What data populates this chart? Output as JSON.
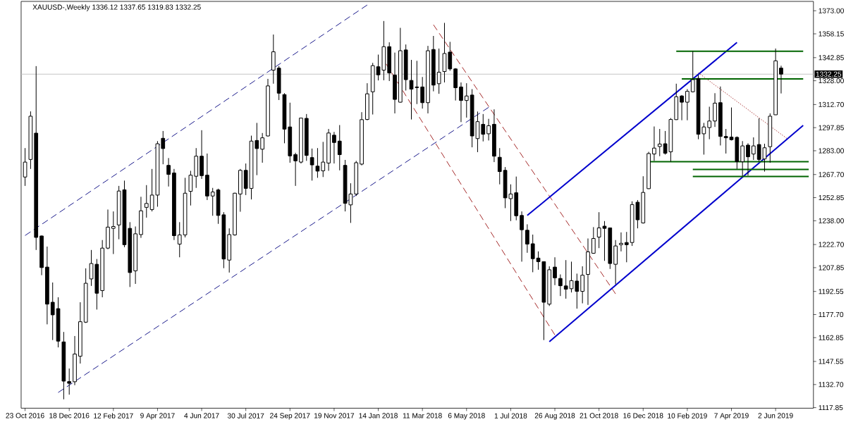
{
  "chart_data": {
    "type": "candlestick",
    "title": "XAUUSD-,Weekly  1336.12 1337.65 1319.83 1332.25",
    "x": [
      "2016-10-23",
      "2016-10-30",
      "2016-11-06",
      "2016-11-13",
      "2016-11-20",
      "2016-11-27",
      "2016-12-04",
      "2016-12-11",
      "2016-12-18",
      "2016-12-25",
      "2017-01-01",
      "2017-01-08",
      "2017-01-15",
      "2017-01-22",
      "2017-01-29",
      "2017-02-05",
      "2017-02-12",
      "2017-02-19",
      "2017-02-26",
      "2017-03-05",
      "2017-03-12",
      "2017-03-19",
      "2017-03-26",
      "2017-04-02",
      "2017-04-09",
      "2017-04-16",
      "2017-04-23",
      "2017-04-30",
      "2017-05-07",
      "2017-05-14",
      "2017-05-21",
      "2017-05-28",
      "2017-06-04",
      "2017-06-11",
      "2017-06-18",
      "2017-06-25",
      "2017-07-02",
      "2017-07-09",
      "2017-07-16",
      "2017-07-23",
      "2017-07-30",
      "2017-08-06",
      "2017-08-13",
      "2017-08-20",
      "2017-08-27",
      "2017-09-03",
      "2017-09-10",
      "2017-09-17",
      "2017-09-24",
      "2017-10-01",
      "2017-10-08",
      "2017-10-15",
      "2017-10-22",
      "2017-10-29",
      "2017-11-05",
      "2017-11-12",
      "2017-11-19",
      "2017-11-26",
      "2017-12-03",
      "2017-12-10",
      "2017-12-17",
      "2017-12-24",
      "2017-12-31",
      "2018-01-07",
      "2018-01-14",
      "2018-01-21",
      "2018-01-28",
      "2018-02-04",
      "2018-02-11",
      "2018-02-18",
      "2018-02-25",
      "2018-03-04",
      "2018-03-11",
      "2018-03-18",
      "2018-03-25",
      "2018-04-01",
      "2018-04-08",
      "2018-04-15",
      "2018-04-22",
      "2018-04-29",
      "2018-05-06",
      "2018-05-13",
      "2018-05-20",
      "2018-05-27",
      "2018-06-03",
      "2018-06-10",
      "2018-06-17",
      "2018-06-24",
      "2018-07-01",
      "2018-07-08",
      "2018-07-15",
      "2018-07-22",
      "2018-07-29",
      "2018-08-05",
      "2018-08-12",
      "2018-08-19",
      "2018-08-26",
      "2018-09-02",
      "2018-09-09",
      "2018-09-16",
      "2018-09-23",
      "2018-09-30",
      "2018-10-07",
      "2018-10-14",
      "2018-10-21",
      "2018-10-28",
      "2018-11-04",
      "2018-11-11",
      "2018-11-18",
      "2018-11-25",
      "2018-12-02",
      "2018-12-09",
      "2018-12-16",
      "2018-12-23",
      "2018-12-30",
      "2019-01-06",
      "2019-01-13",
      "2019-01-20",
      "2019-01-27",
      "2019-02-03",
      "2019-02-10",
      "2019-02-17",
      "2019-02-24",
      "2019-03-03",
      "2019-03-10",
      "2019-03-17",
      "2019-03-24",
      "2019-03-31",
      "2019-04-07",
      "2019-04-14",
      "2019-04-21",
      "2019-04-28",
      "2019-05-05",
      "2019-05-12",
      "2019-05-19",
      "2019-05-26",
      "2019-06-02",
      "2019-06-09"
    ],
    "ohlc": [
      [
        1266.1,
        1284.7,
        1260.4,
        1275.7
      ],
      [
        1277.4,
        1308.3,
        1271.3,
        1305.2
      ],
      [
        1294.3,
        1337.4,
        1219.2,
        1227.3
      ],
      [
        1228.2,
        1228.5,
        1203.0,
        1207.9
      ],
      [
        1208.2,
        1221.4,
        1171.4,
        1184.4
      ],
      [
        1185.6,
        1198.3,
        1161.3,
        1177.5
      ],
      [
        1181.5,
        1188.8,
        1156.6,
        1160.6
      ],
      [
        1160.1,
        1166.5,
        1123.2,
        1134.9
      ],
      [
        1134.6,
        1143.0,
        1126.2,
        1133.5
      ],
      [
        1134.5,
        1163.9,
        1132.3,
        1152.3
      ],
      [
        1150.9,
        1185.6,
        1146.2,
        1173.1
      ],
      [
        1172.8,
        1207.4,
        1172.3,
        1197.8
      ],
      [
        1200.6,
        1219.2,
        1196.1,
        1210.5
      ],
      [
        1210.0,
        1213.4,
        1180.9,
        1191.4
      ],
      [
        1193.1,
        1225.6,
        1188.8,
        1220.4
      ],
      [
        1220.4,
        1245.2,
        1219.7,
        1233.9
      ],
      [
        1233.1,
        1244.0,
        1216.6,
        1234.3
      ],
      [
        1235.3,
        1260.4,
        1226.1,
        1257.1
      ],
      [
        1257.9,
        1263.8,
        1221.0,
        1222.6
      ],
      [
        1233.1,
        1237.1,
        1195.4,
        1204.7
      ],
      [
        1205.8,
        1234.3,
        1197.4,
        1229.6
      ],
      [
        1229.1,
        1253.4,
        1227.0,
        1244.4
      ],
      [
        1246.6,
        1260.9,
        1240.0,
        1249.1
      ],
      [
        1245.2,
        1271.3,
        1244.0,
        1254.5
      ],
      [
        1254.5,
        1289.2,
        1247.0,
        1287.5
      ],
      [
        1291.0,
        1295.7,
        1274.3,
        1284.4
      ],
      [
        1273.6,
        1278.3,
        1260.0,
        1267.8
      ],
      [
        1268.7,
        1271.3,
        1225.6,
        1228.4
      ],
      [
        1223.0,
        1237.1,
        1214.5,
        1228.9
      ],
      [
        1228.9,
        1265.6,
        1227.3,
        1255.7
      ],
      [
        1256.9,
        1270.1,
        1247.8,
        1267.3
      ],
      [
        1266.6,
        1284.7,
        1259.1,
        1279.5
      ],
      [
        1279.5,
        1296.2,
        1264.9,
        1267.0
      ],
      [
        1267.3,
        1281.2,
        1251.3,
        1253.9
      ],
      [
        1253.9,
        1259.1,
        1241.2,
        1256.5
      ],
      [
        1257.8,
        1258.6,
        1236.0,
        1241.4
      ],
      [
        1241.8,
        1243.5,
        1207.5,
        1213.4
      ],
      [
        1212.7,
        1233.1,
        1204.7,
        1229.1
      ],
      [
        1228.9,
        1256.0,
        1228.4,
        1255.7
      ],
      [
        1255.2,
        1271.3,
        1243.8,
        1270.4
      ],
      [
        1270.4,
        1274.8,
        1254.5,
        1258.8
      ],
      [
        1258.8,
        1292.7,
        1251.7,
        1289.2
      ],
      [
        1289.6,
        1300.9,
        1267.3,
        1284.4
      ],
      [
        1284.0,
        1294.4,
        1275.3,
        1291.3
      ],
      [
        1292.5,
        1329.2,
        1292.2,
        1324.7
      ],
      [
        1334.8,
        1357.7,
        1326.1,
        1346.6
      ],
      [
        1336.1,
        1337.4,
        1315.6,
        1320.0
      ],
      [
        1319.1,
        1320.0,
        1287.8,
        1296.9
      ],
      [
        1298.3,
        1313.9,
        1275.3,
        1279.7
      ],
      [
        1280.5,
        1281.7,
        1260.4,
        1276.5
      ],
      [
        1275.7,
        1304.2,
        1274.8,
        1304.0
      ],
      [
        1303.8,
        1306.6,
        1276.5,
        1280.0
      ],
      [
        1278.6,
        1284.4,
        1263.8,
        1273.9
      ],
      [
        1273.1,
        1284.7,
        1265.6,
        1269.9
      ],
      [
        1270.1,
        1288.7,
        1266.1,
        1275.7
      ],
      [
        1275.1,
        1297.0,
        1270.1,
        1294.4
      ],
      [
        1293.0,
        1295.1,
        1274.8,
        1288.3
      ],
      [
        1289.2,
        1299.5,
        1270.4,
        1280.5
      ],
      [
        1273.6,
        1277.1,
        1244.0,
        1249.2
      ],
      [
        1248.2,
        1262.1,
        1236.6,
        1255.2
      ],
      [
        1255.2,
        1276.5,
        1253.9,
        1275.3
      ],
      [
        1274.4,
        1307.8,
        1273.6,
        1303.0
      ],
      [
        1303.1,
        1326.4,
        1302.6,
        1319.6
      ],
      [
        1320.9,
        1339.5,
        1306.3,
        1337.7
      ],
      [
        1337.0,
        1344.8,
        1328.2,
        1331.8
      ],
      [
        1334.8,
        1366.4,
        1328.3,
        1349.9
      ],
      [
        1349.9,
        1352.7,
        1327.8,
        1333.0
      ],
      [
        1331.6,
        1346.1,
        1307.0,
        1316.0
      ],
      [
        1314.2,
        1362.0,
        1314.0,
        1347.3
      ],
      [
        1347.8,
        1351.3,
        1321.7,
        1328.7
      ],
      [
        1328.2,
        1341.4,
        1303.1,
        1322.6
      ],
      [
        1324.0,
        1340.8,
        1313.0,
        1323.6
      ],
      [
        1324.0,
        1330.4,
        1310.1,
        1313.9
      ],
      [
        1313.9,
        1350.4,
        1307.0,
        1347.3
      ],
      [
        1348.1,
        1356.8,
        1321.2,
        1325.2
      ],
      [
        1326.1,
        1348.7,
        1319.6,
        1333.5
      ],
      [
        1333.9,
        1365.2,
        1326.9,
        1345.5
      ],
      [
        1346.4,
        1353.0,
        1334.4,
        1335.6
      ],
      [
        1335.6,
        1336.1,
        1315.3,
        1323.5
      ],
      [
        1324.0,
        1326.9,
        1301.4,
        1315.3
      ],
      [
        1315.3,
        1326.4,
        1304.3,
        1318.2
      ],
      [
        1318.8,
        1322.6,
        1285.2,
        1292.5
      ],
      [
        1290.8,
        1308.2,
        1282.1,
        1301.7
      ],
      [
        1300.0,
        1306.6,
        1289.0,
        1293.6
      ],
      [
        1293.9,
        1303.5,
        1289.6,
        1299.1
      ],
      [
        1300.0,
        1309.6,
        1275.7,
        1279.5
      ],
      [
        1278.8,
        1284.7,
        1261.4,
        1269.6
      ],
      [
        1270.4,
        1272.5,
        1246.1,
        1252.7
      ],
      [
        1252.2,
        1261.4,
        1237.8,
        1255.2
      ],
      [
        1256.0,
        1266.4,
        1238.3,
        1241.2
      ],
      [
        1241.4,
        1244.0,
        1211.7,
        1232.2
      ],
      [
        1231.9,
        1235.7,
        1217.4,
        1223.0
      ],
      [
        1223.2,
        1229.1,
        1204.9,
        1213.6
      ],
      [
        1214.0,
        1218.3,
        1206.5,
        1211.7
      ],
      [
        1211.7,
        1211.7,
        1161.3,
        1185.6
      ],
      [
        1184.4,
        1208.7,
        1183.2,
        1206.5
      ],
      [
        1208.2,
        1214.5,
        1196.6,
        1201.3
      ],
      [
        1200.9,
        1203.5,
        1189.6,
        1196.2
      ],
      [
        1196.1,
        1212.7,
        1187.9,
        1194.0
      ],
      [
        1194.3,
        1211.7,
        1191.9,
        1199.5
      ],
      [
        1199.2,
        1204.0,
        1181.5,
        1192.6
      ],
      [
        1192.6,
        1208.7,
        1184.9,
        1203.0
      ],
      [
        1203.5,
        1226.6,
        1183.9,
        1218.0
      ],
      [
        1217.1,
        1233.9,
        1216.8,
        1226.6
      ],
      [
        1227.5,
        1243.5,
        1220.4,
        1233.4
      ],
      [
        1234.5,
        1237.8,
        1212.2,
        1233.1
      ],
      [
        1233.4,
        1233.6,
        1207.0,
        1210.5
      ],
      [
        1210.0,
        1225.6,
        1197.1,
        1221.8
      ],
      [
        1222.6,
        1230.5,
        1218.3,
        1223.5
      ],
      [
        1224.0,
        1230.8,
        1211.3,
        1222.6
      ],
      [
        1224.0,
        1250.5,
        1221.8,
        1248.4
      ],
      [
        1249.9,
        1251.3,
        1233.1,
        1238.6
      ],
      [
        1236.6,
        1266.6,
        1236.2,
        1256.2
      ],
      [
        1258.6,
        1282.3,
        1258.4,
        1281.2
      ],
      [
        1280.9,
        1298.6,
        1276.5,
        1284.7
      ],
      [
        1285.7,
        1297.0,
        1279.5,
        1287.3
      ],
      [
        1287.5,
        1295.7,
        1280.5,
        1281.4
      ],
      [
        1282.3,
        1304.0,
        1276.0,
        1303.1
      ],
      [
        1303.0,
        1326.1,
        1302.8,
        1317.7
      ],
      [
        1318.2,
        1318.8,
        1302.6,
        1314.2
      ],
      [
        1314.2,
        1322.6,
        1302.6,
        1321.2
      ],
      [
        1320.9,
        1346.9,
        1320.5,
        1328.7
      ],
      [
        1329.5,
        1331.6,
        1290.4,
        1293.6
      ],
      [
        1293.9,
        1300.9,
        1280.5,
        1298.3
      ],
      [
        1297.9,
        1311.3,
        1290.4,
        1302.1
      ],
      [
        1302.1,
        1320.0,
        1298.3,
        1313.6
      ],
      [
        1313.9,
        1324.3,
        1286.4,
        1292.2
      ],
      [
        1292.2,
        1297.0,
        1281.2,
        1291.3
      ],
      [
        1291.8,
        1310.8,
        1289.6,
        1290.1
      ],
      [
        1291.6,
        1292.2,
        1271.3,
        1276.0
      ],
      [
        1276.0,
        1289.2,
        1266.6,
        1286.1
      ],
      [
        1286.6,
        1287.8,
        1267.0,
        1279.1
      ],
      [
        1280.9,
        1291.6,
        1277.1,
        1286.1
      ],
      [
        1287.0,
        1303.8,
        1276.0,
        1277.4
      ],
      [
        1277.7,
        1287.5,
        1269.6,
        1284.9
      ],
      [
        1285.6,
        1307.0,
        1275.3,
        1305.2
      ],
      [
        1306.1,
        1348.7,
        1306.0,
        1340.8
      ],
      [
        1336.12,
        1337.65,
        1319.83,
        1332.25
      ]
    ],
    "color": "#000000",
    "series": [
      {
        "type": "line",
        "x": [
          "2016-10-23",
          "2017-12-31"
        ],
        "values": [
          1228.5,
          1376.7
        ],
        "color": "#1a1a8c",
        "line_style": "dashed"
      },
      {
        "type": "line",
        "x": [
          "2016-12-04",
          "2018-06-03"
        ],
        "values": [
          1127.6,
          1310.9
        ],
        "color": "#1a1a8c",
        "line_style": "dashed"
      },
      {
        "type": "line",
        "x": [
          "2018-03-25",
          "2018-11-11"
        ],
        "values": [
          1364.0,
          1191.0
        ],
        "color": "#a52a2a",
        "line_style": "dashed"
      },
      {
        "type": "line",
        "x": [
          "2018-01-24",
          "2018-08-26"
        ],
        "values": [
          1338.8,
          1164.6
        ],
        "color": "#a52a2a",
        "line_style": "dashed"
      },
      {
        "type": "line",
        "x": [
          "2019-02-24",
          "2019-06-16"
        ],
        "values": [
          1333.1,
          1291.0
        ],
        "color": "#a52a2a",
        "line_style": "dotted"
      },
      {
        "type": "line",
        "x": [
          "2018-07-22",
          "2019-04-14"
        ],
        "values": [
          1241.4,
          1352.6
        ],
        "color": "#0000cd",
        "line_style": "solid"
      },
      {
        "type": "line",
        "x": [
          "2018-08-19",
          "2019-07-07"
        ],
        "values": [
          1160.2,
          1299.3
        ],
        "color": "#0000cd",
        "line_style": "solid"
      },
      {
        "type": "line",
        "x": [
          "2019-01-27",
          "2019-07-07"
        ],
        "values": [
          1346.9,
          1346.9
        ],
        "color": "#006400",
        "line_style": "solid"
      },
      {
        "type": "line",
        "x": [
          "2019-02-03",
          "2019-07-07"
        ],
        "values": [
          1329.2,
          1329.2
        ],
        "color": "#006400",
        "line_style": "solid"
      },
      {
        "type": "line",
        "x": [
          "2018-12-23",
          "2019-07-14"
        ],
        "values": [
          1276.0,
          1276.0
        ],
        "color": "#006400",
        "line_style": "solid"
      },
      {
        "type": "line",
        "x": [
          "2019-02-17",
          "2019-07-14"
        ],
        "values": [
          1271.0,
          1271.0
        ],
        "color": "#006400",
        "line_style": "solid"
      },
      {
        "type": "line",
        "x": [
          "2019-02-17",
          "2019-07-14"
        ],
        "values": [
          1266.4,
          1266.4
        ],
        "color": "#006400",
        "line_style": "solid"
      }
    ],
    "ref_lines": [
      {
        "axis": "y",
        "value": 1332.25,
        "label": "1332.25",
        "color": "#c0c0c0"
      }
    ],
    "xlim": [
      "2016-10-18",
      "2019-07-20"
    ],
    "xticks": [
      {
        "value": "2016-10-23",
        "label": "23 Oct 2016"
      },
      {
        "value": "2016-12-18",
        "label": "18 Dec 2016"
      },
      {
        "value": "2017-02-12",
        "label": "12 Feb 2017"
      },
      {
        "value": "2017-04-09",
        "label": "9 Apr 2017"
      },
      {
        "value": "2017-06-04",
        "label": "4 Jun 2017"
      },
      {
        "value": "2017-07-30",
        "label": "30 Jul 2017"
      },
      {
        "value": "2017-09-24",
        "label": "24 Sep 2017"
      },
      {
        "value": "2017-11-19",
        "label": "19 Nov 2017"
      },
      {
        "value": "2018-01-14",
        "label": "14 Jan 2018"
      },
      {
        "value": "2018-03-11",
        "label": "11 Mar 2018"
      },
      {
        "value": "2018-05-06",
        "label": "6 May 2018"
      },
      {
        "value": "2018-07-01",
        "label": "1 Jul 2018"
      },
      {
        "value": "2018-08-26",
        "label": "26 Aug 2018"
      },
      {
        "value": "2018-10-21",
        "label": "21 Oct 2018"
      },
      {
        "value": "2018-12-16",
        "label": "16 Dec 2018"
      },
      {
        "value": "2019-02-10",
        "label": "10 Feb 2019"
      },
      {
        "value": "2019-04-07",
        "label": "7 Apr 2019"
      },
      {
        "value": "2019-06-02",
        "label": "2 Jun 2019"
      }
    ],
    "ylim": [
      1117.5,
      1379.0
    ],
    "yticks": [
      {
        "value": 1373.0,
        "label": "1373.00"
      },
      {
        "value": 1358.15,
        "label": "1358.15"
      },
      {
        "value": 1342.85,
        "label": "1342.85"
      },
      {
        "value": 1328.0,
        "label": "1328.00"
      },
      {
        "value": 1312.7,
        "label": "1312.70"
      },
      {
        "value": 1297.85,
        "label": "1297.85"
      },
      {
        "value": 1283.0,
        "label": "1283.00"
      },
      {
        "value": 1267.7,
        "label": "1267.70"
      },
      {
        "value": 1252.85,
        "label": "1252.85"
      },
      {
        "value": 1238.0,
        "label": "1238.00"
      },
      {
        "value": 1222.7,
        "label": "1222.70"
      },
      {
        "value": 1207.85,
        "label": "1207.85"
      },
      {
        "value": 1192.55,
        "label": "1192.55"
      },
      {
        "value": 1177.7,
        "label": "1177.70"
      },
      {
        "value": 1162.85,
        "label": "1162.85"
      },
      {
        "value": 1147.55,
        "label": "1147.55"
      },
      {
        "value": 1132.7,
        "label": "1132.70"
      },
      {
        "value": 1117.85,
        "label": "1117.85"
      }
    ]
  }
}
